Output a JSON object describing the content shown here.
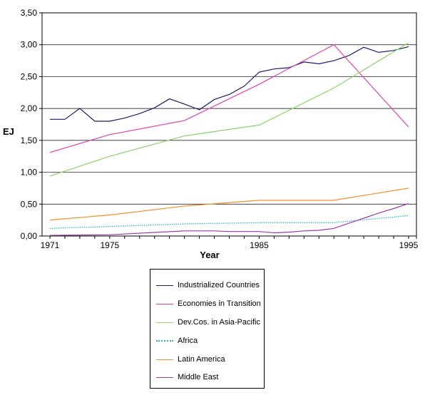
{
  "chart_data": {
    "type": "line",
    "xlabel": "Year",
    "ylabel": "EJ",
    "xlim": [
      1971,
      1996
    ],
    "ylim": [
      0,
      3.5
    ],
    "x_ticks": [
      "1971",
      "1975",
      "1985",
      "1995"
    ],
    "x_tick_values": [
      1971,
      1975,
      1985,
      1995
    ],
    "y_ticks": [
      "0,00",
      "0,50",
      "1,00",
      "1,50",
      "2,00",
      "2,50",
      "3,00",
      "3,50"
    ],
    "y_tick_values": [
      0,
      0.5,
      1.0,
      1.5,
      2.0,
      2.5,
      3.0,
      3.5
    ],
    "grid": "horizontal",
    "legend_position": "bottom",
    "series": [
      {
        "name": "Industrialized Countries",
        "color": "#1f1a6b",
        "style": "solid",
        "x": [
          1971,
          1972,
          1973,
          1974,
          1975,
          1976,
          1977,
          1978,
          1979,
          1980,
          1981,
          1982,
          1983,
          1984,
          1985,
          1986,
          1987,
          1988,
          1989,
          1990,
          1991,
          1992,
          1993,
          1994,
          1995
        ],
        "values": [
          1.83,
          1.83,
          2.0,
          1.8,
          1.8,
          1.85,
          1.92,
          2.01,
          2.15,
          2.07,
          1.98,
          2.14,
          2.22,
          2.35,
          2.57,
          2.62,
          2.64,
          2.73,
          2.7,
          2.75,
          2.83,
          2.96,
          2.88,
          2.91,
          2.97
        ]
      },
      {
        "name": "Economies in Transition",
        "color": "#e040b0",
        "style": "solid",
        "x": [
          1971,
          1975,
          1980,
          1985,
          1990,
          1995
        ],
        "values": [
          1.31,
          1.59,
          1.81,
          2.38,
          3.0,
          1.71
        ]
      },
      {
        "name": "Dev.Cos. in Asia-Pacific",
        "color": "#8cd46a",
        "style": "solid",
        "x": [
          1971,
          1975,
          1980,
          1985,
          1990,
          1995
        ],
        "values": [
          0.94,
          1.25,
          1.57,
          1.74,
          2.32,
          3.03
        ]
      },
      {
        "name": "Africa",
        "color": "#2bb5c8",
        "style": "dotted",
        "x": [
          1971,
          1975,
          1980,
          1985,
          1990,
          1995
        ],
        "values": [
          0.12,
          0.15,
          0.19,
          0.21,
          0.21,
          0.32
        ]
      },
      {
        "name": "Latin America",
        "color": "#f0902a",
        "style": "solid",
        "x": [
          1971,
          1975,
          1980,
          1985,
          1990,
          1995
        ],
        "values": [
          0.25,
          0.33,
          0.47,
          0.56,
          0.56,
          0.75
        ]
      },
      {
        "name": "Middle East",
        "color": "#9b3aa8",
        "style": "solid",
        "x": [
          1971,
          1975,
          1980,
          1981,
          1982,
          1983,
          1984,
          1985,
          1986,
          1987,
          1988,
          1989,
          1990,
          1991,
          1992,
          1993,
          1994,
          1995
        ],
        "values": [
          0.01,
          0.02,
          0.08,
          0.08,
          0.08,
          0.07,
          0.07,
          0.07,
          0.05,
          0.06,
          0.08,
          0.09,
          0.12,
          0.2,
          0.28,
          0.36,
          0.43,
          0.51
        ]
      }
    ]
  }
}
